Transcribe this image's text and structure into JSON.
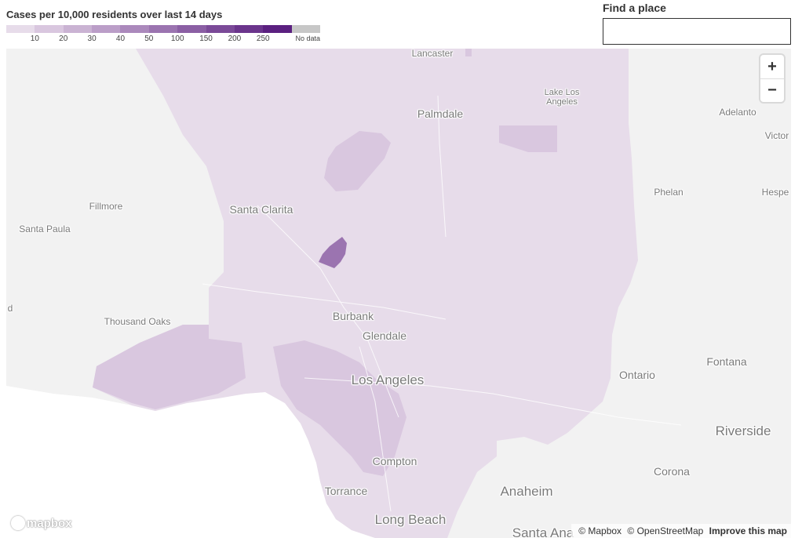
{
  "legend": {
    "title": "Cases per 10,000 residents over last 14 days",
    "bins": [
      {
        "color": "#e7dcea"
      },
      {
        "color": "#d9c7df"
      },
      {
        "color": "#cab3d3"
      },
      {
        "color": "#bb9ec8"
      },
      {
        "color": "#ab89bc"
      },
      {
        "color": "#9b74b0"
      },
      {
        "color": "#8b5fa4"
      },
      {
        "color": "#7b4a98"
      },
      {
        "color": "#6b358c"
      },
      {
        "color": "#5b2080"
      },
      {
        "color": "#c7c7c7"
      }
    ],
    "ticks": [
      "10",
      "20",
      "30",
      "40",
      "50",
      "100",
      "150",
      "200",
      "250"
    ],
    "no_data_label": "No data"
  },
  "search": {
    "label": "Find a place",
    "value": "",
    "placeholder": ""
  },
  "map": {
    "colors": {
      "land": "#f2f2f2",
      "water": "#ffffff",
      "county_fill": "#e7dcea",
      "mid_fill": "#d9c7df",
      "high_fill": "#9b74b0"
    },
    "labels": {
      "lancaster": "Lancaster",
      "lake_los_angeles": "Lake Los Angeles",
      "palmdale": "Palmdale",
      "adelanto": "Adelanto",
      "victorville": "Victor",
      "fillmore": "Fillmore",
      "santa_clarita": "Santa Clarita",
      "phelan": "Phelan",
      "hesperia": "Hespe",
      "santa_paula": "Santa Paula",
      "oxnard": "d",
      "thousand_oaks": "Thousand Oaks",
      "burbank": "Burbank",
      "glendale": "Glendale",
      "los_angeles": "Los Angeles",
      "fontana": "Fontana",
      "ontario": "Ontario",
      "riverside": "Riverside",
      "compton": "Compton",
      "corona": "Corona",
      "torrance": "Torrance",
      "anaheim": "Anaheim",
      "long_beach": "Long Beach",
      "santa_ana": "Santa Ana"
    }
  },
  "controls": {
    "zoom_in": "+",
    "zoom_out": "−"
  },
  "logo": {
    "text": "mapbox"
  },
  "attribution": {
    "mapbox": "© Mapbox",
    "osm": "© OpenStreetMap",
    "improve": "Improve this map"
  }
}
